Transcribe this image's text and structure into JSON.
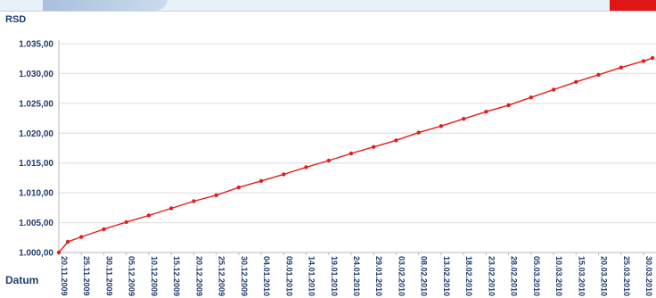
{
  "chart_data": {
    "type": "line",
    "title": "",
    "ylabel": "RSD",
    "xlabel": "Datum",
    "ylim": [
      1000,
      1035
    ],
    "grid": true,
    "y_ticks": [
      "1.000,00",
      "1.005,00",
      "1.010,00",
      "1.015,00",
      "1.020,00",
      "1.025,00",
      "1.030,00",
      "1.035,00"
    ],
    "x_tick_labels": [
      "20.11.2009",
      "25.11.2009",
      "30.11.2009",
      "05.12.2009",
      "10.12.2009",
      "15.12.2009",
      "20.12.2009",
      "25.12.2009",
      "30.12.2009",
      "04.01.2010",
      "09.01.2010",
      "14.01.2010",
      "19.01.2010",
      "24.01.2010",
      "29.01.2010",
      "03.02.2010",
      "08.02.2010",
      "13.02.2010",
      "18.02.2010",
      "23.02.2010",
      "28.02.2010",
      "05.03.2010",
      "10.03.2010",
      "15.03.2010",
      "20.03.2010",
      "25.03.2010",
      "30.03.2010"
    ],
    "series": [
      {
        "color": "#e41c1c",
        "x": [
          "20.11.2009",
          "22.11.2009",
          "25.11.2009",
          "30.11.2009",
          "05.12.2009",
          "10.12.2009",
          "15.12.2009",
          "20.12.2009",
          "25.12.2009",
          "30.12.2009",
          "04.01.2010",
          "09.01.2010",
          "14.01.2010",
          "19.01.2010",
          "24.01.2010",
          "29.01.2010",
          "03.02.2010",
          "08.02.2010",
          "13.02.2010",
          "18.02.2010",
          "23.02.2010",
          "28.02.2010",
          "05.03.2010",
          "10.03.2010",
          "15.03.2010",
          "20.03.2010",
          "25.03.2010",
          "30.03.2010",
          "01.04.2010"
        ],
        "values": [
          1000.0,
          1001.8,
          1002.6,
          1003.9,
          1005.1,
          1006.2,
          1007.4,
          1008.6,
          1009.6,
          1010.9,
          1012.0,
          1013.1,
          1014.3,
          1015.4,
          1016.6,
          1017.7,
          1018.8,
          1020.1,
          1021.2,
          1022.4,
          1023.6,
          1024.7,
          1026.0,
          1027.3,
          1028.6,
          1029.8,
          1031.0,
          1032.1,
          1032.6
        ]
      }
    ]
  }
}
